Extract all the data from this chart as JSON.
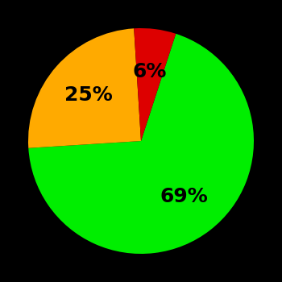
{
  "slices": [
    69,
    25,
    6
  ],
  "colors": [
    "#00ee00",
    "#ffaa00",
    "#dd0000"
  ],
  "labels": [
    "69%",
    "25%",
    "6%"
  ],
  "background_color": "#000000",
  "text_color": "#000000",
  "label_fontsize": 18,
  "label_fontweight": "bold",
  "startangle": 72,
  "figsize": [
    3.5,
    3.5
  ],
  "dpi": 100
}
